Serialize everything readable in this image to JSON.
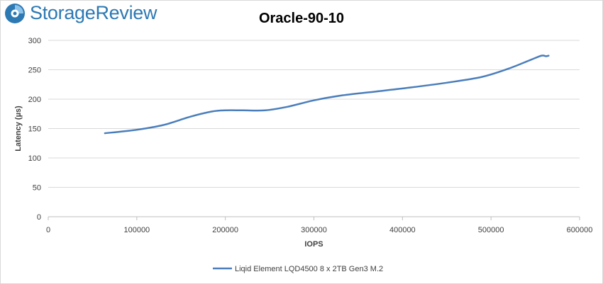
{
  "logo": {
    "text": "StorageReview",
    "icon": "storagereview-logo-icon"
  },
  "chart_data": {
    "type": "line",
    "title": "Oracle-90-10",
    "xlabel": "IOPS",
    "ylabel": "Latency (µs)",
    "xlim": [
      0,
      600000
    ],
    "ylim": [
      0,
      300
    ],
    "x_ticks": [
      0,
      100000,
      200000,
      300000,
      400000,
      500000,
      600000
    ],
    "y_ticks": [
      0,
      50,
      100,
      150,
      200,
      250,
      300
    ],
    "grid": "horizontal",
    "legend_position": "bottom",
    "series": [
      {
        "name": "Liqid Element LQD4500 8 x 2TB Gen3 M.2",
        "color": "#4a7ebb",
        "x": [
          64000,
          100000,
          130000,
          160000,
          185000,
          200000,
          220000,
          245000,
          270000,
          300000,
          330000,
          370000,
          410000,
          450000,
          490000,
          520000,
          545000,
          557000,
          562000,
          565000
        ],
        "y": [
          142,
          148,
          156,
          170,
          179,
          181,
          181,
          181,
          187,
          198,
          206,
          213,
          220,
          228,
          238,
          252,
          267,
          274,
          273,
          274
        ]
      }
    ]
  }
}
